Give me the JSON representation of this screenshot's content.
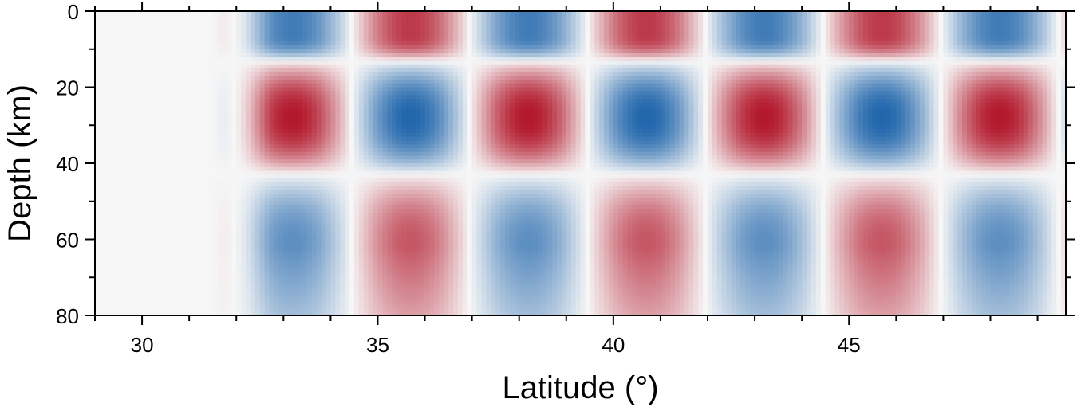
{
  "chart_data": {
    "type": "heatmap",
    "title": "",
    "xlabel": "Latitude (°)",
    "ylabel": "Depth (km)",
    "xlim": [
      29,
      49.6
    ],
    "ylim": [
      0,
      80
    ],
    "y_inverted": true,
    "x_ticks": [
      30,
      35,
      40,
      45
    ],
    "x_tick_labels": [
      "30",
      "35",
      "40",
      "45"
    ],
    "x_minor_tick_step": 1,
    "y_ticks": [
      0,
      20,
      40,
      60,
      80
    ],
    "y_tick_labels": [
      "0",
      "20",
      "40",
      "60",
      "80"
    ],
    "y_minor_tick_step": 10,
    "colormap": "diverging red-white-blue",
    "colors": {
      "neutral": "#f6f6f6",
      "blue_max": "#2166ac",
      "red_max": "#b2182b",
      "frame": "#000000"
    },
    "pattern": {
      "onset_latitude": 31.5,
      "block_width_deg": 2.5,
      "rows": [
        {
          "depth_range": [
            0,
            13
          ],
          "first_sign": "blue",
          "amplitude": 0.85,
          "block_centers_lat": [
            33.2,
            35.7,
            38.2,
            40.7,
            43.2,
            45.7,
            48.2
          ]
        },
        {
          "depth_range": [
            13,
            43
          ],
          "first_sign": "red",
          "amplitude": 1.0,
          "block_centers_lat": [
            33.2,
            35.7,
            38.2,
            40.7,
            43.2,
            45.7,
            48.2
          ]
        },
        {
          "depth_range": [
            43,
            80
          ],
          "first_sign": "blue",
          "amplitude": 0.72,
          "block_centers_lat": [
            33.2,
            35.7,
            38.2,
            40.7,
            43.2,
            45.7,
            48.2
          ]
        }
      ]
    }
  }
}
